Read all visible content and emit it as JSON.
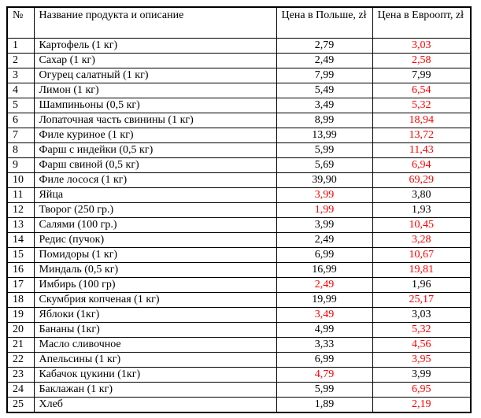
{
  "table": {
    "columns": [
      "№",
      "Название продукта и описание",
      "Цена в Польше, zł",
      "Цена в Евроопт, zł"
    ],
    "colors": {
      "accent_red": "#ff0000",
      "border": "#000000",
      "text": "#000000",
      "background": "#ffffff"
    },
    "rows": [
      {
        "num": "1",
        "name": "Картофель (1 кг)",
        "price_pl": "2,79",
        "pl_red": false,
        "price_eu": "3,03",
        "eu_red": true
      },
      {
        "num": "2",
        "name": "Сахар (1 кг)",
        "price_pl": "2,49",
        "pl_red": false,
        "price_eu": "2,58",
        "eu_red": true
      },
      {
        "num": "3",
        "name": "Огурец салатный (1 кг)",
        "price_pl": "7,99",
        "pl_red": false,
        "price_eu": "7,99",
        "eu_red": false
      },
      {
        "num": "4",
        "name": "Лимон (1 кг)",
        "price_pl": "5,49",
        "pl_red": false,
        "price_eu": "6,54",
        "eu_red": true
      },
      {
        "num": "5",
        "name": "Шампиньоны (0,5 кг)",
        "price_pl": "3,49",
        "pl_red": false,
        "price_eu": "5,32",
        "eu_red": true
      },
      {
        "num": "6",
        "name": "Лопаточная часть свинины (1 кг)",
        "price_pl": "8,99",
        "pl_red": false,
        "price_eu": "18,94",
        "eu_red": true
      },
      {
        "num": "7",
        "name": "Филе куриное (1 кг)",
        "price_pl": "13,99",
        "pl_red": false,
        "price_eu": "13,72",
        "eu_red": true
      },
      {
        "num": "8",
        "name": "Фарш с индейки (0,5 кг)",
        "price_pl": "5,99",
        "pl_red": false,
        "price_eu": "11,43",
        "eu_red": true
      },
      {
        "num": "9",
        "name": "Фарш свиной (0,5 кг)",
        "price_pl": "5,69",
        "pl_red": false,
        "price_eu": "6,94",
        "eu_red": true
      },
      {
        "num": "10",
        "name": "Филе лосося (1 кг)",
        "price_pl": "39,90",
        "pl_red": false,
        "price_eu": "69,29",
        "eu_red": true
      },
      {
        "num": "11",
        "name": "Яйца",
        "price_pl": "3,99",
        "pl_red": true,
        "price_eu": "3,80",
        "eu_red": false
      },
      {
        "num": "12",
        "name": "Творог (250 гр.)",
        "price_pl": "1,99",
        "pl_red": true,
        "price_eu": "1,93",
        "eu_red": false
      },
      {
        "num": "13",
        "name": "Салями (100 гр.)",
        "price_pl": "3,99",
        "pl_red": false,
        "price_eu": "10,45",
        "eu_red": true
      },
      {
        "num": "14",
        "name": "Редис (пучок)",
        "price_pl": "2,49",
        "pl_red": false,
        "price_eu": "3,28",
        "eu_red": true
      },
      {
        "num": "15",
        "name": "Помидоры (1 кг)",
        "price_pl": "6,99",
        "pl_red": false,
        "price_eu": "10,67",
        "eu_red": true
      },
      {
        "num": "16",
        "name": "Миндаль (0,5 кг)",
        "price_pl": "16,99",
        "pl_red": false,
        "price_eu": "19,81",
        "eu_red": true
      },
      {
        "num": "17",
        "name": "Имбирь (100 гр)",
        "price_pl": "2,49",
        "pl_red": true,
        "price_eu": "1,96",
        "eu_red": false
      },
      {
        "num": "18",
        "name": "Скумбрия копченая (1 кг)",
        "price_pl": "19,99",
        "pl_red": false,
        "price_eu": "25,17",
        "eu_red": true
      },
      {
        "num": "19",
        "name": "Яблоки (1кг)",
        "price_pl": "3,49",
        "pl_red": true,
        "price_eu": "3,03",
        "eu_red": false
      },
      {
        "num": "20",
        "name": "Бананы (1кг)",
        "price_pl": "4,99",
        "pl_red": false,
        "price_eu": "5,32",
        "eu_red": true
      },
      {
        "num": "21",
        "name": "Масло сливочное",
        "price_pl": "3,33",
        "pl_red": false,
        "price_eu": "4,56",
        "eu_red": true
      },
      {
        "num": "22",
        "name": "Апельсины (1 кг)",
        "price_pl": "6,99",
        "pl_red": false,
        "price_eu": "3,95",
        "eu_red": true
      },
      {
        "num": "23",
        "name": "Кабачок цукини (1кг)",
        "price_pl": "4,79",
        "pl_red": true,
        "price_eu": "3,99",
        "eu_red": false
      },
      {
        "num": "24",
        "name": "Баклажан (1 кг)",
        "price_pl": "5,99",
        "pl_red": false,
        "price_eu": "6,95",
        "eu_red": true
      },
      {
        "num": "25",
        "name": "Хлеб",
        "price_pl": "1,89",
        "pl_red": false,
        "price_eu": "2,19",
        "eu_red": true
      }
    ]
  }
}
